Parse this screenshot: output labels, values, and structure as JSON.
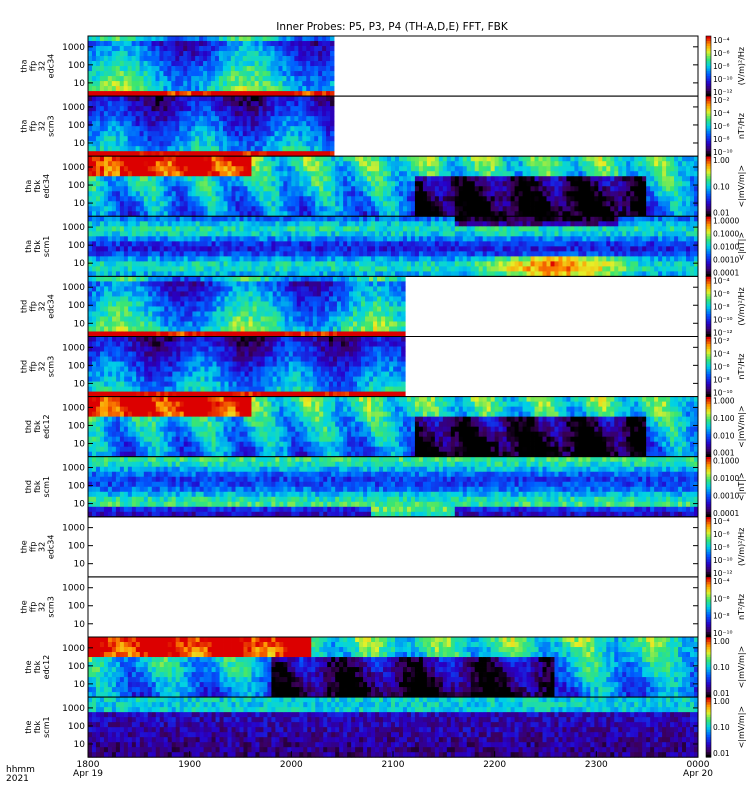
{
  "chart_data": {
    "type": "heatmap",
    "title": "Inner Probes: P5, P3, P4 (TH-A,D,E) FFT, FBK",
    "time_label": [
      "hhmm",
      "2021"
    ],
    "x_ticks": [
      {
        "time": "1800",
        "date": "Apr 19"
      },
      {
        "time": "1900",
        "date": ""
      },
      {
        "time": "2000",
        "date": ""
      },
      {
        "time": "2100",
        "date": ""
      },
      {
        "time": "2200",
        "date": ""
      },
      {
        "time": "2300",
        "date": ""
      },
      {
        "time": "0000",
        "date": "Apr 20"
      }
    ],
    "y_scale": "log",
    "y_ticks": [
      "10",
      "100",
      "1000"
    ],
    "panels": [
      {
        "ylabel": [
          "tha",
          "ffp",
          "32",
          "edc34"
        ],
        "unit": "(V/m)²/Hz",
        "cbar_ticks": [
          "10⁻¹²",
          "10⁻¹⁰",
          "10⁻⁸",
          "10⁻⁶",
          "10⁻⁴"
        ],
        "data_end_hour": 2.42,
        "spectrum": "edc_ffp"
      },
      {
        "ylabel": [
          "tha",
          "ffp",
          "32",
          "scm3"
        ],
        "unit": "nT²/Hz",
        "cbar_ticks": [
          "10⁻¹⁰",
          "10⁻⁸",
          "10⁻⁶",
          "10⁻⁴",
          "10⁻²"
        ],
        "data_end_hour": 2.42,
        "spectrum": "scm_ffp"
      },
      {
        "ylabel": [
          "tha",
          "fbk",
          "edc34"
        ],
        "unit": "<|mV/m|>",
        "cbar_ticks": [
          "0.01",
          "0.10",
          "1.00"
        ],
        "data_end_hour": 6.0,
        "spectrum": "edc_fbk"
      },
      {
        "ylabel": [
          "tha",
          "fbk",
          "scm1"
        ],
        "unit": "<|nT|>",
        "cbar_ticks": [
          "0.0001",
          "0.0010",
          "0.0100",
          "0.1000",
          "1.0000"
        ],
        "data_end_hour": 6.0,
        "spectrum": "scm_fbk_a"
      },
      {
        "ylabel": [
          "thd",
          "ffp",
          "32",
          "edc34"
        ],
        "unit": "(V/m)²/Hz",
        "cbar_ticks": [
          "10⁻¹²",
          "10⁻¹⁰",
          "10⁻⁸",
          "10⁻⁶",
          "10⁻⁴"
        ],
        "data_end_hour": 3.12,
        "spectrum": "edc_ffp"
      },
      {
        "ylabel": [
          "thd",
          "ffp",
          "32",
          "scm3"
        ],
        "unit": "nT²/Hz",
        "cbar_ticks": [
          "10⁻¹⁰",
          "10⁻⁸",
          "10⁻⁶",
          "10⁻⁴",
          "10⁻²"
        ],
        "data_end_hour": 3.12,
        "spectrum": "scm_ffp"
      },
      {
        "ylabel": [
          "thd",
          "fbk",
          "edc12"
        ],
        "unit": "<|mV/m|>",
        "cbar_ticks": [
          "0.001",
          "0.010",
          "0.100",
          "1.000"
        ],
        "data_end_hour": 6.0,
        "spectrum": "edc_fbk"
      },
      {
        "ylabel": [
          "thd",
          "fbk",
          "scm1"
        ],
        "unit": "<|nT|>",
        "cbar_ticks": [
          "0.0001",
          "0.0010",
          "0.0100",
          "0.1000"
        ],
        "data_end_hour": 6.0,
        "spectrum": "scm_fbk_d"
      },
      {
        "ylabel": [
          "the",
          "ffp",
          "32",
          "edc34"
        ],
        "unit": "(V/m)²/Hz",
        "cbar_ticks": [
          "10⁻¹²",
          "10⁻¹⁰",
          "10⁻⁸",
          "10⁻⁶",
          "10⁻⁴"
        ],
        "data_end_hour": 0,
        "spectrum": "none"
      },
      {
        "ylabel": [
          "the",
          "ffp",
          "32",
          "scm3"
        ],
        "unit": "nT²/Hz",
        "cbar_ticks": [
          "10⁻¹⁰",
          "10⁻⁸",
          "10⁻⁶",
          "10⁻⁴"
        ],
        "data_end_hour": 0,
        "spectrum": "none"
      },
      {
        "ylabel": [
          "the",
          "fbk",
          "edc12"
        ],
        "unit": "<|mV/m|>",
        "cbar_ticks": [
          "0.01",
          "0.10",
          "1.00"
        ],
        "data_end_hour": 6.0,
        "spectrum": "edc_fbk_e"
      },
      {
        "ylabel": [
          "the",
          "fbk",
          "scm1"
        ],
        "unit": "<|mV/m|>",
        "cbar_ticks": [
          "0.01",
          "0.10",
          "1.00"
        ],
        "data_end_hour": 6.0,
        "spectrum": "scm_fbk_e"
      }
    ]
  }
}
